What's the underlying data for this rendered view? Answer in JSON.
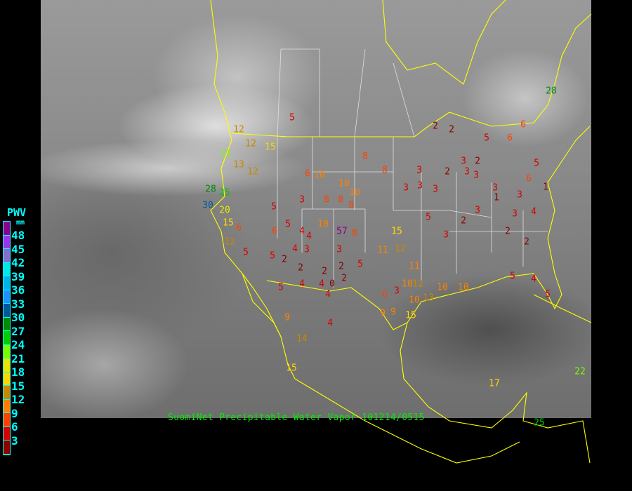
{
  "caption": "SuomiNet Precipitable Water Vapor 101214/0515",
  "legend": {
    "title": "PWV",
    "unit": "mm",
    "labels": [
      "48",
      "45",
      "42",
      "39",
      "36",
      "33",
      "30",
      "27",
      "24",
      "21",
      "18",
      "15",
      "12",
      "9",
      "6",
      "3"
    ],
    "colors": [
      "#8b0090",
      "#9933ee",
      "#8470cc",
      "#00e8e8",
      "#00b4e6",
      "#1e90ff",
      "#00589a",
      "#008a00",
      "#00cc00",
      "#7cfc00",
      "#e6e600",
      "#ffd700",
      "#c88800",
      "#ff8000",
      "#ff4000",
      "#d80000",
      "#8b0000"
    ],
    "thresholds": [
      48,
      45,
      42,
      39,
      36,
      33,
      30,
      27,
      24,
      21,
      18,
      15,
      12,
      9,
      6,
      3,
      0
    ]
  },
  "map_colors": {
    "coast": "#ffff00",
    "states": "#e0e0e0",
    "background": "#000000"
  },
  "stations": [
    "5",
    "12",
    "12",
    "15",
    "21",
    "13",
    "12",
    "28",
    "25",
    "30",
    "20",
    "15",
    "6",
    "12",
    "5",
    "5",
    "2",
    "4",
    "3",
    "3",
    "2",
    "2",
    "2",
    "5",
    "4",
    "0",
    "2",
    "4",
    "4",
    "5",
    "9",
    "14",
    "4",
    "15",
    "8",
    "8",
    "3",
    "2",
    "2",
    "5",
    "6",
    "6",
    "5",
    "6",
    "1",
    "3",
    "1",
    "3",
    "3",
    "4",
    "2",
    "2",
    "5",
    "4",
    "5",
    "3",
    "2",
    "3",
    "5",
    "15",
    "12",
    "11",
    "11",
    "12",
    "10",
    "10",
    "13",
    "10",
    "10",
    "9",
    "9",
    "15",
    "6",
    "3",
    "10",
    "57",
    "8",
    "10",
    "6",
    "10",
    "10",
    "8",
    "8",
    "8",
    "3",
    "5",
    "5",
    "4",
    "6",
    "4",
    "28",
    "22",
    "17",
    "25",
    "3",
    "3",
    "3",
    "3",
    "2",
    "3",
    "2",
    "3"
  ]
}
